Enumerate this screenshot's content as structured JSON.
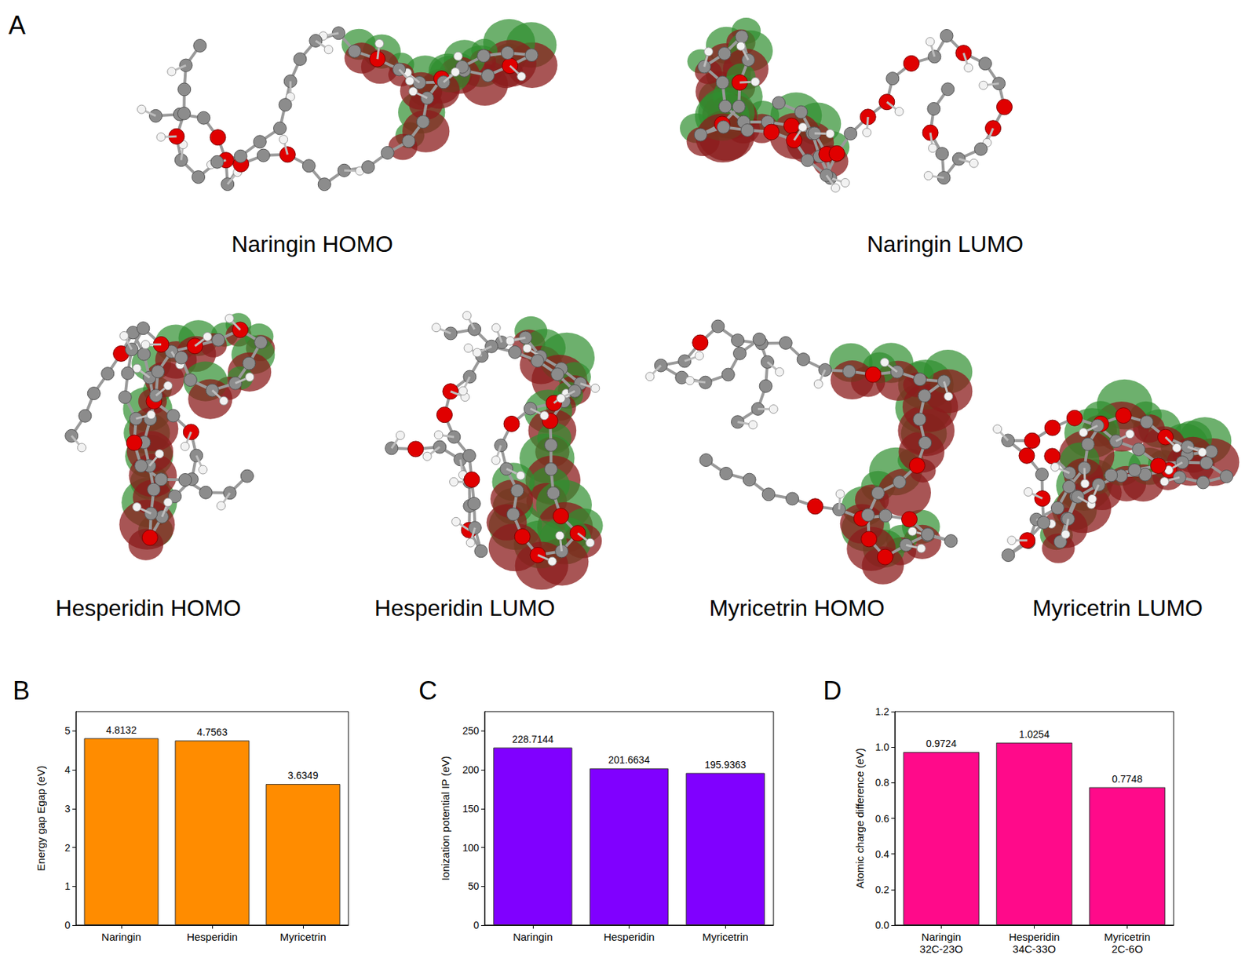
{
  "panel_a": {
    "label": "A",
    "images": [
      "Naringin HOMO",
      "Naringin LUMO",
      "Hesperidin HOMO",
      "Hesperidin LUMO",
      "Myricetrin HOMO",
      "Myricetrin LUMO"
    ]
  },
  "chart_data": [
    {
      "type": "bar",
      "title": "B",
      "categories": [
        "Naringin",
        "Hesperidin",
        "Myricetrin"
      ],
      "values": [
        4.8132,
        4.7563,
        3.6349
      ],
      "color": "#ff8c00",
      "ylabel": "Energy gap Egap (eV)",
      "ylim": [
        0,
        5.5
      ],
      "yticks": [
        0,
        1,
        2,
        3,
        4,
        5
      ],
      "data_labels": true,
      "grid": false
    },
    {
      "type": "bar",
      "title": "C",
      "categories": [
        "Naringin",
        "Hesperidin",
        "Myricetrin"
      ],
      "values": [
        228.7144,
        201.6634,
        195.9363
      ],
      "color": "#8000ff",
      "ylabel": "Ionization potential IP (eV)",
      "ylim": [
        0,
        275
      ],
      "yticks": [
        0,
        50,
        100,
        150,
        200,
        250
      ],
      "data_labels": true,
      "grid": false
    },
    {
      "type": "bar",
      "title": "D",
      "categories": [
        "Naringin\n32C-23O",
        "Hesperidin\n34C-33O",
        "Myricetrin\n2C-6O"
      ],
      "values": [
        0.9724,
        1.0254,
        0.7748
      ],
      "color": "#ff0a8a",
      "ylabel": "Atomic charge difference (eV)",
      "ylim": [
        0,
        1.2
      ],
      "yticks": [
        {
          "value": 0,
          "label": "0.0"
        },
        {
          "value": 0.2,
          "label": "0.2"
        },
        {
          "value": 0.4,
          "label": "0.4"
        },
        {
          "value": 0.6,
          "label": "0.6"
        },
        {
          "value": 0.8,
          "label": "0.8"
        },
        {
          "value": 1.0,
          "label": "1.0"
        },
        {
          "value": 1.2,
          "label": "1.2"
        }
      ],
      "data_labels": true,
      "grid": false
    }
  ]
}
